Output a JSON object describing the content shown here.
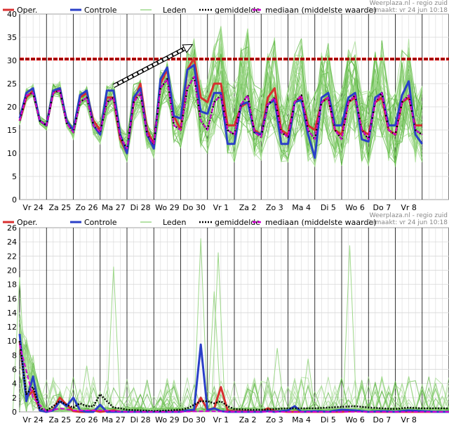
{
  "colors": {
    "oper": "#d83030",
    "controle": "#2a3fc8",
    "leden": "#5bb540",
    "leden_light": "#9ed88a",
    "gemiddelde": "#000000",
    "mediaan": "#d400d4",
    "threshold": "#e00000",
    "grid": "#d8d8d8",
    "daygrid": "#000000"
  },
  "legend": {
    "oper": "Oper.",
    "controle": "Controle",
    "leden": "Leden",
    "gemiddelde": "gemiddelde",
    "mediaan": "mediaan (middelste waarde)"
  },
  "source": "Weerplaza.nl - regio zuid",
  "made": "Gemaakt: vr 24 jun 10:18",
  "chart_data": [
    {
      "type": "line",
      "ylim": [
        0,
        40
      ],
      "yticks": [
        0,
        5,
        10,
        15,
        20,
        25,
        30,
        35,
        40
      ],
      "x_tick_labels": [
        "Vr 24",
        "Za 25",
        "Zo 26",
        "Ma 27",
        "Di 28",
        "Wo 29",
        "Do 30",
        "Vr 1",
        "Za 2",
        "Zo 3",
        "Ma 4",
        "Di 5",
        "Wo 6",
        "Do 7",
        "Vr 8"
      ],
      "x_days": 16,
      "threshold": 30.3,
      "annotation_arrow": {
        "from": [
          3.5,
          24.5
        ],
        "to": [
          6.3,
          33
        ]
      },
      "series": [
        {
          "name": "Oper.",
          "x": [
            0,
            0.25,
            0.5,
            0.75,
            1.0,
            1.25,
            1.5,
            1.75,
            2.0,
            2.25,
            2.5,
            2.75,
            3.0,
            3.25,
            3.5,
            3.75,
            4.0,
            4.25,
            4.5,
            4.75,
            5.0,
            5.25,
            5.5,
            5.75,
            6.0,
            6.25,
            6.5,
            6.75,
            7.0,
            7.25,
            7.5,
            7.75,
            8.0,
            8.25,
            8.5,
            8.75,
            9.0,
            9.25,
            9.5,
            9.75,
            10.0,
            10.25,
            10.5,
            10.75,
            11.0,
            11.25,
            11.5,
            11.75,
            12.0,
            12.25,
            12.5,
            12.75,
            13.0,
            13.25,
            13.5,
            13.75,
            14.0,
            14.25,
            14.5,
            14.75,
            15.0
          ],
          "values": [
            17,
            22,
            23.5,
            17,
            16,
            23,
            24,
            17,
            15,
            22,
            23,
            17,
            15,
            22,
            22,
            13,
            10,
            21,
            25,
            15,
            12,
            25,
            28,
            18,
            15,
            28,
            30.5,
            22,
            21,
            25,
            25,
            16,
            16,
            20,
            21,
            15,
            14,
            22,
            24,
            15,
            14,
            21,
            22,
            16,
            15,
            21,
            22,
            15,
            14,
            21,
            22,
            15,
            14,
            21,
            22,
            15,
            14,
            21,
            22,
            16,
            16
          ]
        },
        {
          "name": "Controle",
          "x": [
            0,
            0.25,
            0.5,
            0.75,
            1.0,
            1.25,
            1.5,
            1.75,
            2.0,
            2.25,
            2.5,
            2.75,
            3.0,
            3.25,
            3.5,
            3.75,
            4.0,
            4.25,
            4.5,
            4.75,
            5.0,
            5.25,
            5.5,
            5.75,
            6.0,
            6.25,
            6.5,
            6.75,
            7.0,
            7.25,
            7.5,
            7.75,
            8.0,
            8.25,
            8.5,
            8.75,
            9.0,
            9.25,
            9.5,
            9.75,
            10.0,
            10.25,
            10.5,
            10.75,
            11.0,
            11.25,
            11.5,
            11.75,
            12.0,
            12.25,
            12.5,
            12.75,
            13.0,
            13.25,
            13.5,
            13.75,
            14.0,
            14.25,
            14.5,
            14.75,
            15.0
          ],
          "values": [
            17.5,
            23,
            24,
            17,
            16,
            23.5,
            24,
            17,
            15,
            22.5,
            23.5,
            16,
            14,
            23.5,
            23.5,
            14,
            10,
            22,
            24,
            14,
            11,
            26,
            28.5,
            18,
            17.5,
            28,
            29,
            19,
            18.5,
            23,
            23,
            12,
            12,
            20.5,
            21,
            14.5,
            14,
            20.5,
            21.5,
            12,
            12,
            21,
            21.5,
            14,
            9,
            22,
            23,
            16,
            16,
            22,
            23,
            13,
            12.5,
            22,
            23,
            16,
            16,
            22.5,
            25.5,
            14,
            12
          ]
        },
        {
          "name": "gemiddelde",
          "x": [
            0,
            0.25,
            0.5,
            0.75,
            1.0,
            1.25,
            1.5,
            1.75,
            2.0,
            2.25,
            2.5,
            2.75,
            3.0,
            3.25,
            3.5,
            3.75,
            4.0,
            4.25,
            4.5,
            4.75,
            5.0,
            5.25,
            5.5,
            5.75,
            6.0,
            6.25,
            6.5,
            6.75,
            7.0,
            7.25,
            7.5,
            7.75,
            8.0,
            8.25,
            8.5,
            8.75,
            9.0,
            9.25,
            9.5,
            9.75,
            10.0,
            10.25,
            10.5,
            10.75,
            11.0,
            11.25,
            11.5,
            11.75,
            12.0,
            12.25,
            12.5,
            12.75,
            13.0,
            13.25,
            13.5,
            13.75,
            14.0,
            14.25,
            14.5,
            14.75,
            15.0
          ],
          "values": [
            17,
            22.5,
            23,
            17,
            16,
            23,
            23.5,
            16.5,
            14.5,
            21,
            22,
            16,
            14.5,
            21,
            22,
            13.5,
            11,
            21,
            23,
            14,
            12,
            24,
            26,
            16,
            15,
            24,
            26.5,
            17,
            15,
            21,
            22.5,
            15,
            14,
            20.5,
            22.5,
            14.5,
            13.5,
            20.5,
            22,
            14.5,
            13.5,
            21,
            22.5,
            15,
            13,
            21,
            22,
            15,
            13,
            21,
            22.5,
            15,
            13,
            21,
            23,
            15,
            14,
            21,
            22.5,
            15,
            14
          ]
        },
        {
          "name": "mediaan (middelste waarde)",
          "x": [
            0,
            0.25,
            0.5,
            0.75,
            1.0,
            1.25,
            1.5,
            1.75,
            2.0,
            2.25,
            2.5,
            2.75,
            3.0,
            3.25,
            3.5,
            3.75,
            4.0,
            4.25,
            4.5,
            4.75,
            5.0,
            5.25,
            5.5,
            5.75,
            6.0,
            6.25,
            6.5,
            6.75,
            7.0,
            7.25,
            7.5,
            7.75,
            8.0,
            8.25,
            8.5,
            8.75,
            9.0,
            9.25,
            9.5,
            9.75,
            10.0,
            10.25,
            10.5,
            10.75,
            11.0,
            11.25,
            11.5,
            11.75,
            12.0,
            12.25,
            12.5,
            12.75,
            13.0,
            13.25,
            13.5,
            13.75,
            14.0,
            14.25,
            14.5,
            14.75,
            15.0
          ],
          "values": [
            17,
            22.5,
            23,
            17,
            16,
            23,
            23.5,
            16.5,
            14.5,
            21,
            22,
            16,
            14.5,
            21,
            22,
            13.5,
            11,
            21,
            23,
            14,
            12,
            24,
            26,
            16,
            15,
            24,
            26.5,
            17,
            15,
            21,
            22.5,
            15,
            14,
            20.5,
            22.5,
            14.5,
            13.5,
            20.5,
            22,
            14.5,
            13.5,
            21,
            22.5,
            15,
            13,
            21,
            22,
            15,
            13,
            21,
            22.5,
            15,
            13,
            21,
            23,
            15,
            14,
            21,
            22.5,
            15,
            14
          ]
        }
      ],
      "leden_band": {
        "x": [
          0,
          0.25,
          0.5,
          0.75,
          1.0,
          1.25,
          1.5,
          1.75,
          2.0,
          2.25,
          2.5,
          2.75,
          3.0,
          3.25,
          3.5,
          3.75,
          4.0,
          4.25,
          4.5,
          4.75,
          5.0,
          5.25,
          5.5,
          5.75,
          6.0,
          6.25,
          6.5,
          6.75,
          7.0,
          7.25,
          7.5,
          7.75,
          8.0,
          8.25,
          8.5,
          8.75,
          9.0,
          9.25,
          9.5,
          9.75,
          10.0,
          10.25,
          10.5,
          10.75,
          11.0,
          11.25,
          11.5,
          11.75,
          12.0,
          12.25,
          12.5,
          12.75,
          13.0,
          13.25,
          13.5,
          13.75,
          14.0,
          14.25,
          14.5,
          14.75,
          15.0
        ],
        "low": [
          16,
          21,
          22,
          16,
          15,
          22,
          22,
          15.5,
          13,
          20,
          20,
          14,
          12,
          18,
          19,
          11,
          8,
          17,
          19,
          11,
          9,
          19,
          21,
          12,
          11,
          17,
          19,
          11,
          9,
          14,
          15,
          9,
          8,
          13,
          14,
          9,
          8,
          13,
          14,
          8,
          8,
          12,
          13,
          8,
          7,
          12,
          13,
          8,
          7,
          12,
          13,
          8,
          7,
          12,
          13,
          8,
          7,
          12,
          13,
          8,
          8
        ],
        "high": [
          18,
          24,
          25,
          18,
          17,
          25,
          25.5,
          18,
          16,
          23.5,
          24.5,
          18,
          17,
          25,
          25.5,
          16,
          14,
          25,
          26,
          17,
          15,
          28,
          30,
          22,
          21,
          33,
          35,
          26,
          26,
          34,
          38,
          26,
          26,
          33,
          37,
          25,
          24,
          32,
          35,
          24,
          24,
          32,
          35,
          24,
          24,
          32,
          34,
          24,
          24,
          33,
          35,
          24,
          24,
          33,
          35,
          24,
          24,
          33,
          35,
          25,
          25
        ]
      }
    },
    {
      "type": "line",
      "ylim": [
        0,
        26
      ],
      "yticks": [
        0,
        2,
        4,
        6,
        8,
        10,
        12,
        14,
        16,
        18,
        20,
        22,
        24,
        26
      ],
      "x_tick_labels": [
        "Vr 24",
        "Za 25",
        "Zo 26",
        "Ma 27",
        "Di 28",
        "Wo 29",
        "Do 30",
        "Vr 1",
        "Za 2",
        "Zo 3",
        "Ma 4",
        "Di 5",
        "Wo 6",
        "Do 7",
        "Vr 8"
      ],
      "x_days": 16,
      "series": [
        {
          "name": "Oper.",
          "x": [
            0,
            0.25,
            0.5,
            0.75,
            1.0,
            1.25,
            1.5,
            1.75,
            2.0,
            2.25,
            2.5,
            2.75,
            3.0,
            3.25,
            3.5,
            3.75,
            4.0,
            4.5,
            5.0,
            5.5,
            6.0,
            6.25,
            6.5,
            6.75,
            7.0,
            7.25,
            7.5,
            7.75,
            8.0,
            8.5,
            9.0,
            9.25,
            9.5,
            10.0,
            10.5,
            11.0,
            11.5,
            12.0,
            12.5,
            13.0,
            13.5,
            14.0,
            14.5,
            15.0,
            15.5,
            16.0
          ],
          "values": [
            10,
            2,
            3,
            0.2,
            0,
            0.3,
            2,
            1,
            0.1,
            0,
            0,
            0.2,
            0,
            0.1,
            0.2,
            0,
            0,
            0,
            0,
            0,
            0.1,
            0.1,
            0.2,
            2,
            0.3,
            0.5,
            3.5,
            0.2,
            0.1,
            0.1,
            0,
            0.5,
            0.1,
            0,
            0,
            0,
            0,
            0,
            0.1,
            0,
            0,
            0,
            0,
            0,
            0,
            0
          ]
        },
        {
          "name": "Controle",
          "x": [
            0,
            0.25,
            0.5,
            0.75,
            1.0,
            1.25,
            1.5,
            1.75,
            2.0,
            2.25,
            2.5,
            2.75,
            3.0,
            3.25,
            3.5,
            3.75,
            4.0,
            4.5,
            5.0,
            5.5,
            6.0,
            6.25,
            6.5,
            6.75,
            7.0,
            7.25,
            7.5,
            7.75,
            8.0,
            8.5,
            9.0,
            9.25,
            9.5,
            10.0,
            10.25,
            10.5,
            11.0,
            11.5,
            12.0,
            12.5,
            13.0,
            13.5,
            14.0,
            14.5,
            15.0,
            15.5,
            16.0
          ],
          "values": [
            11,
            1.5,
            5,
            0.2,
            0,
            0.2,
            1.5,
            0.8,
            2,
            0.2,
            0,
            0,
            1,
            0,
            0,
            0,
            0,
            0,
            0,
            0,
            0,
            0.2,
            0.3,
            9.5,
            0.2,
            0.5,
            0.1,
            0,
            0,
            0,
            0,
            0.1,
            0,
            0.2,
            0.8,
            0,
            0.1,
            0,
            0.3,
            0.2,
            0,
            0.1,
            0,
            0.2,
            0.1,
            0,
            0
          ]
        },
        {
          "name": "gemiddelde",
          "x": [
            0,
            0.25,
            0.5,
            0.75,
            1.0,
            1.25,
            1.5,
            1.75,
            2.0,
            2.25,
            2.5,
            2.75,
            3.0,
            3.25,
            3.5,
            3.75,
            4.0,
            4.5,
            5.0,
            5.5,
            6.0,
            6.25,
            6.5,
            6.75,
            7.0,
            7.25,
            7.5,
            7.75,
            8.0,
            8.5,
            9.0,
            9.5,
            10.0,
            10.5,
            11.0,
            11.5,
            12.0,
            12.5,
            13.0,
            13.5,
            14.0,
            14.5,
            15.0,
            15.5,
            16.0
          ],
          "values": [
            10,
            2.5,
            3.5,
            0.5,
            0.2,
            0.8,
            1.5,
            1,
            0.6,
            1.2,
            0.8,
            0.8,
            2.5,
            1.5,
            0.6,
            0.5,
            0.3,
            0.2,
            0.1,
            0.2,
            0.3,
            0.5,
            1,
            1.5,
            1.5,
            1.2,
            1.5,
            0.8,
            0.4,
            0.3,
            0.3,
            0.4,
            0.5,
            0.5,
            0.5,
            0.6,
            0.7,
            0.8,
            0.6,
            0.5,
            0.4,
            0.6,
            0.5,
            0.5,
            0.5
          ]
        },
        {
          "name": "mediaan (middelste waarde)",
          "x": [
            0,
            0.5,
            1.0,
            1.5,
            2.0,
            3.0,
            4.0,
            5.0,
            6.0,
            7.0,
            8.0,
            9.0,
            10.0,
            11.0,
            12.0,
            13.0,
            14.0,
            15.0,
            16.0
          ],
          "values": [
            9.5,
            2,
            0,
            0.5,
            0.2,
            0.2,
            0,
            0,
            0,
            0.1,
            0,
            0,
            0,
            0,
            0,
            0,
            0,
            0,
            0
          ]
        }
      ],
      "leden_peaks": [
        [
          0,
          19
        ],
        [
          0.5,
          8
        ],
        [
          2.5,
          6.5
        ],
        [
          3.5,
          20.5
        ],
        [
          6.75,
          24.5
        ],
        [
          7.4,
          22.5
        ],
        [
          7.25,
          17
        ],
        [
          9.6,
          9
        ],
        [
          10.75,
          7.5
        ],
        [
          12.3,
          23.5
        ],
        [
          13.5,
          5
        ],
        [
          14.5,
          5
        ]
      ]
    }
  ]
}
